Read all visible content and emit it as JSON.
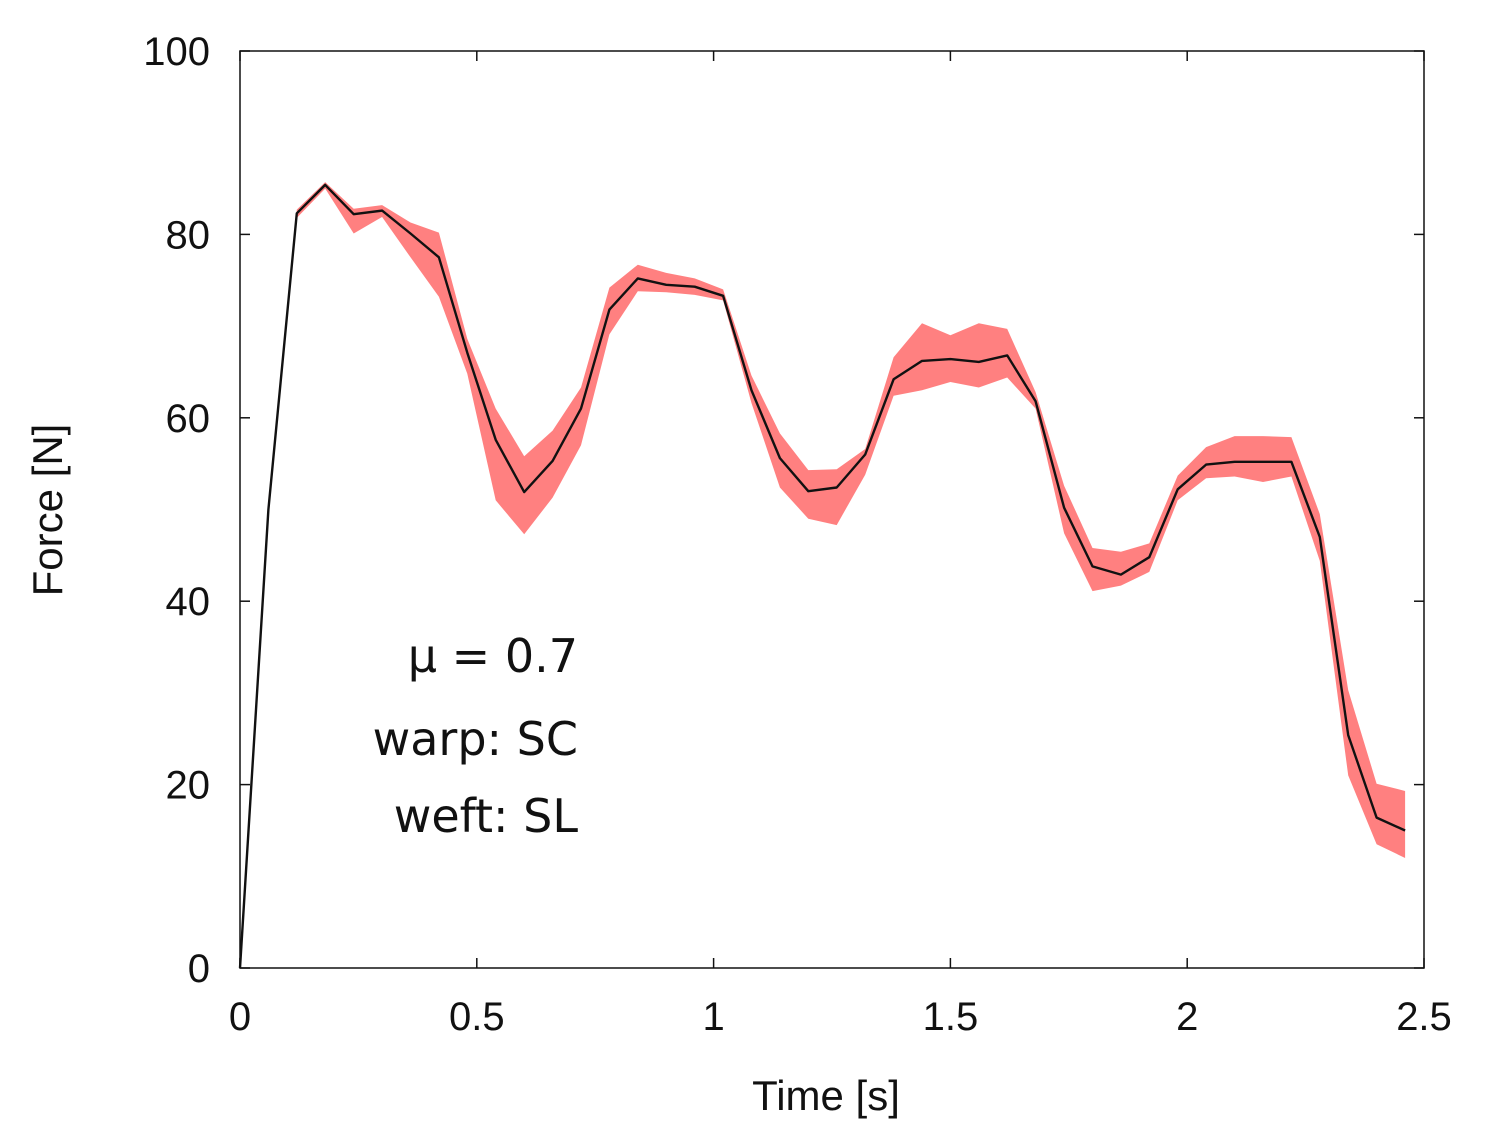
{
  "chart_data": {
    "type": "line",
    "xlabel": "Time [s]",
    "ylabel": "Force [N]",
    "xlim": [
      0,
      2.5
    ],
    "ylim": [
      0,
      100
    ],
    "xticks": [
      "0",
      "0.5",
      "1",
      "1.5",
      "2",
      "2.5"
    ],
    "yticks": [
      "0",
      "20",
      "40",
      "60",
      "80",
      "100"
    ],
    "grid": false,
    "band_color": "#ff8080",
    "line_color": "#111111",
    "annotations": [
      "μ = 0.7",
      "warp: SC",
      "weft: SL"
    ],
    "series": [
      {
        "x": [
          0,
          0.06,
          0.12,
          0.18,
          0.24,
          0.3,
          0.36,
          0.42,
          0.48,
          0.54,
          0.6,
          0.66,
          0.72,
          0.78,
          0.84,
          0.9,
          0.96,
          1.02,
          1.08,
          1.14,
          1.2,
          1.26,
          1.32,
          1.38,
          1.44,
          1.5,
          1.56,
          1.62,
          1.68,
          1.74,
          1.8,
          1.86,
          1.92,
          1.98,
          2.04,
          2.1,
          2.16,
          2.22,
          2.28,
          2.34,
          2.4,
          2.46
        ],
        "y": [
          0,
          50,
          82.3,
          85.4,
          82.2,
          82.6,
          80.1,
          77.5,
          67.1,
          57.6,
          51.9,
          55.3,
          61.0,
          71.8,
          75.2,
          74.5,
          74.3,
          73.3,
          63.0,
          55.6,
          52.0,
          52.4,
          56.0,
          64.2,
          66.2,
          66.4,
          66.1,
          66.8,
          61.8,
          50.2,
          43.8,
          42.9,
          44.8,
          52.2,
          54.9,
          55.2,
          55.2,
          55.2,
          47.0,
          25.4,
          16.4,
          15.0
        ],
        "lower": [
          0,
          49,
          81.8,
          85.0,
          80.1,
          81.9,
          77.5,
          73.2,
          64.8,
          51.0,
          47.3,
          51.3,
          57.0,
          69.1,
          73.8,
          73.7,
          73.4,
          72.8,
          61.6,
          52.4,
          49.0,
          48.3,
          53.8,
          62.4,
          63.0,
          63.9,
          63.3,
          64.4,
          61.0,
          47.4,
          41.1,
          41.7,
          43.2,
          51.0,
          53.4,
          53.6,
          53.0,
          53.6,
          44.4,
          21.0,
          13.5,
          12.0
        ],
        "upper": [
          0,
          51,
          82.7,
          85.7,
          82.8,
          83.2,
          81.3,
          80.2,
          68.6,
          61.0,
          55.8,
          58.6,
          63.3,
          74.2,
          76.7,
          75.8,
          75.2,
          74.0,
          64.6,
          58.3,
          54.3,
          54.4,
          56.6,
          66.6,
          70.3,
          69.0,
          70.3,
          69.7,
          62.8,
          52.6,
          45.8,
          45.4,
          46.3,
          53.7,
          56.8,
          58.0,
          58.0,
          57.9,
          49.5,
          30.3,
          20.1,
          19.3
        ]
      }
    ]
  }
}
